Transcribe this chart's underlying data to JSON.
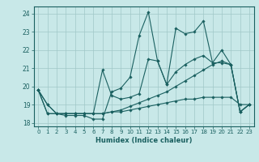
{
  "xlabel": "Humidex (Indice chaleur)",
  "background_color": "#c8e8e8",
  "grid_color": "#a0c8c8",
  "line_color": "#1a6060",
  "xlim": [
    -0.5,
    23.5
  ],
  "ylim": [
    17.8,
    24.4
  ],
  "xticks": [
    0,
    1,
    2,
    3,
    4,
    5,
    6,
    7,
    8,
    9,
    10,
    11,
    12,
    13,
    14,
    15,
    16,
    17,
    18,
    19,
    20,
    21,
    22,
    23
  ],
  "yticks": [
    18,
    19,
    20,
    21,
    22,
    23,
    24
  ],
  "series": [
    [
      19.8,
      19.0,
      18.5,
      18.4,
      18.4,
      18.4,
      18.2,
      18.2,
      19.7,
      19.9,
      20.5,
      22.8,
      24.1,
      21.4,
      20.1,
      23.2,
      22.9,
      23.0,
      23.6,
      21.3,
      22.0,
      21.2,
      18.6,
      19.0
    ],
    [
      19.8,
      19.0,
      18.5,
      18.5,
      18.5,
      18.5,
      18.5,
      20.9,
      19.5,
      19.3,
      19.4,
      19.6,
      21.5,
      21.4,
      20.1,
      20.8,
      21.2,
      21.5,
      21.7,
      21.3,
      21.3,
      21.2,
      18.6,
      19.0
    ],
    [
      19.8,
      18.5,
      18.5,
      18.5,
      18.5,
      18.5,
      18.5,
      18.5,
      18.6,
      18.6,
      18.7,
      18.8,
      18.9,
      19.0,
      19.1,
      19.2,
      19.3,
      19.3,
      19.4,
      19.4,
      19.4,
      19.4,
      19.0,
      19.0
    ],
    [
      19.8,
      18.5,
      18.5,
      18.5,
      18.5,
      18.5,
      18.5,
      18.5,
      18.6,
      18.7,
      18.9,
      19.1,
      19.3,
      19.5,
      19.7,
      20.0,
      20.3,
      20.6,
      20.9,
      21.2,
      21.4,
      21.2,
      18.6,
      19.0
    ]
  ]
}
